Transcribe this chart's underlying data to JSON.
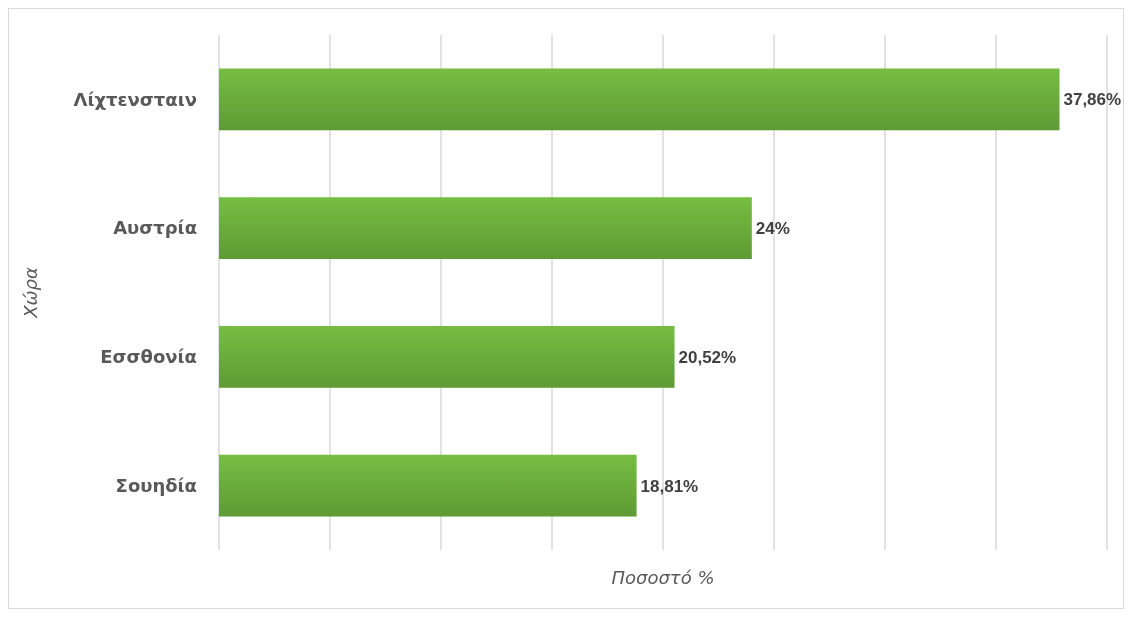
{
  "chart_data": {
    "type": "bar",
    "orientation": "horizontal",
    "xlabel": "Ποσοστό %",
    "ylabel": "Χώρα",
    "categories": [
      "Λίχτενσταιν",
      "Αυστρία",
      "Εσσθονία",
      "Σουηδία"
    ],
    "values": [
      37.86,
      24,
      20.52,
      18.81
    ],
    "value_labels": [
      "37,86%",
      "24%",
      "20,52%",
      "18,81%"
    ],
    "color": "#68a83a",
    "xlim": [
      0,
      40
    ],
    "xticks": [
      {
        "value": 0,
        "label": null
      },
      {
        "value": 5,
        "label": null
      },
      {
        "value": 10,
        "label": null
      },
      {
        "value": 15,
        "label": null
      },
      {
        "value": 20,
        "label": null
      },
      {
        "value": 25,
        "label": null
      },
      {
        "value": 30,
        "label": null
      },
      {
        "value": 35,
        "label": null
      },
      {
        "value": 40,
        "label": null
      }
    ],
    "tick_labels": "y",
    "grid": "x"
  }
}
